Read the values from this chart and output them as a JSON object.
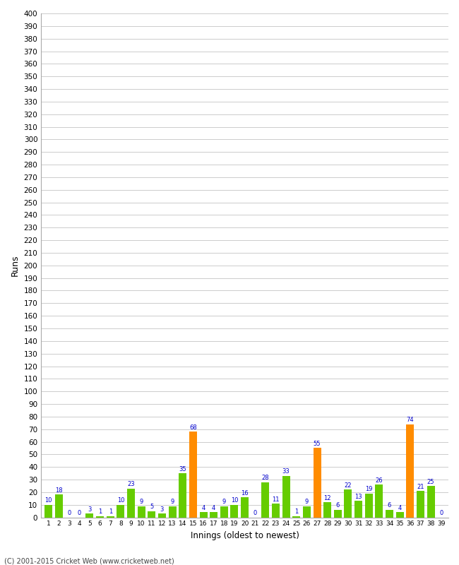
{
  "innings": [
    1,
    2,
    3,
    4,
    5,
    6,
    7,
    8,
    9,
    10,
    11,
    12,
    13,
    14,
    15,
    16,
    17,
    18,
    19,
    20,
    21,
    22,
    23,
    24,
    25,
    26,
    27,
    28,
    29,
    30,
    31,
    32,
    33,
    34,
    35,
    36,
    37,
    38,
    39
  ],
  "values": [
    10,
    18,
    0,
    0,
    3,
    1,
    1,
    10,
    23,
    9,
    5,
    3,
    9,
    35,
    68,
    4,
    4,
    9,
    10,
    16,
    0,
    28,
    11,
    33,
    1,
    9,
    55,
    12,
    6,
    22,
    13,
    19,
    26,
    6,
    4,
    74,
    21,
    25,
    0
  ],
  "orange_innings": [
    15,
    27,
    36
  ],
  "bar_color_green": "#66cc00",
  "bar_color_orange": "#ff8c00",
  "label_color": "#0000cc",
  "ylabel": "Runs",
  "xlabel": "Innings (oldest to newest)",
  "ylim": [
    0,
    400
  ],
  "ytick_step": 10,
  "background_color": "#ffffff",
  "grid_color": "#cccccc",
  "footer": "(C) 2001-2015 Cricket Web (www.cricketweb.net)"
}
